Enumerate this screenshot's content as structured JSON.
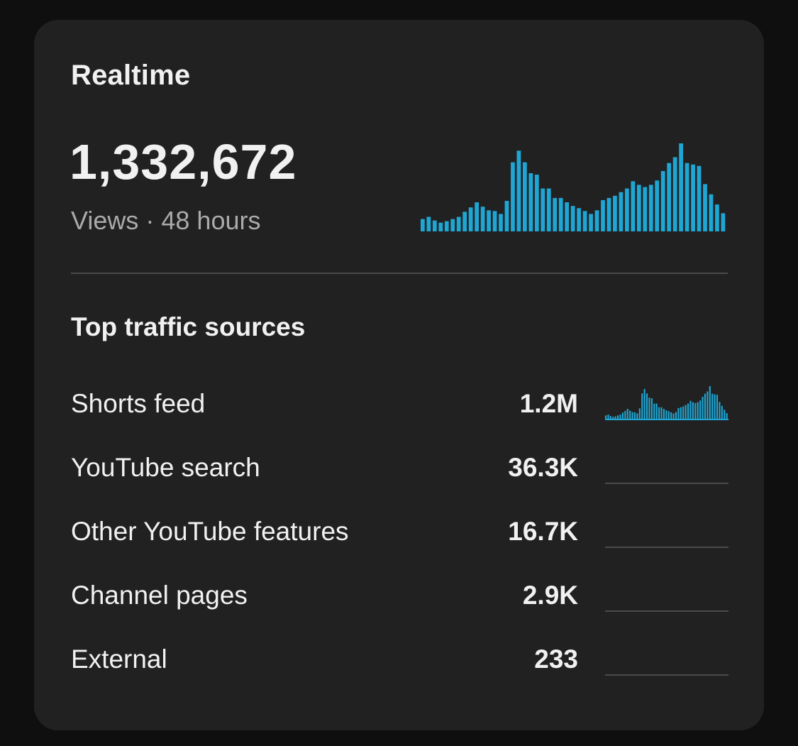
{
  "card": {
    "title": "Realtime",
    "total_views": "1,332,672",
    "subtitle": "Views · 48 hours"
  },
  "colors": {
    "bar": "#1ea6d4",
    "baseline": "#4a4a4a"
  },
  "traffic": {
    "title": "Top traffic sources",
    "sources": [
      {
        "label": "Shorts feed",
        "value": "1.2M"
      },
      {
        "label": "YouTube search",
        "value": "36.3K"
      },
      {
        "label": "Other YouTube features",
        "value": "16.7K"
      },
      {
        "label": "Channel pages",
        "value": "2.9K"
      },
      {
        "label": "External",
        "value": "233"
      }
    ]
  },
  "chart_data": {
    "type": "bar",
    "title": "",
    "xlabel": "",
    "ylabel": "",
    "series": [
      {
        "values": [
          17,
          20,
          15,
          12,
          14,
          17,
          20,
          27,
          33,
          40,
          34,
          29,
          28,
          24,
          42,
          95,
          111,
          95,
          80,
          78,
          59,
          59,
          46,
          46,
          40,
          35,
          32,
          28,
          24,
          29,
          43,
          46,
          49,
          54,
          59,
          69,
          64,
          61,
          64,
          70,
          83,
          94,
          102,
          121,
          94,
          92,
          90,
          65,
          51,
          37,
          25
        ]
      }
    ]
  }
}
